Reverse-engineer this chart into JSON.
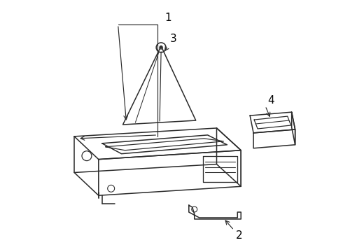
{
  "background_color": "#ffffff",
  "line_color": "#2a2a2a",
  "line_width": 1.1,
  "label_color": "#000000",
  "label_fontsize": 10
}
